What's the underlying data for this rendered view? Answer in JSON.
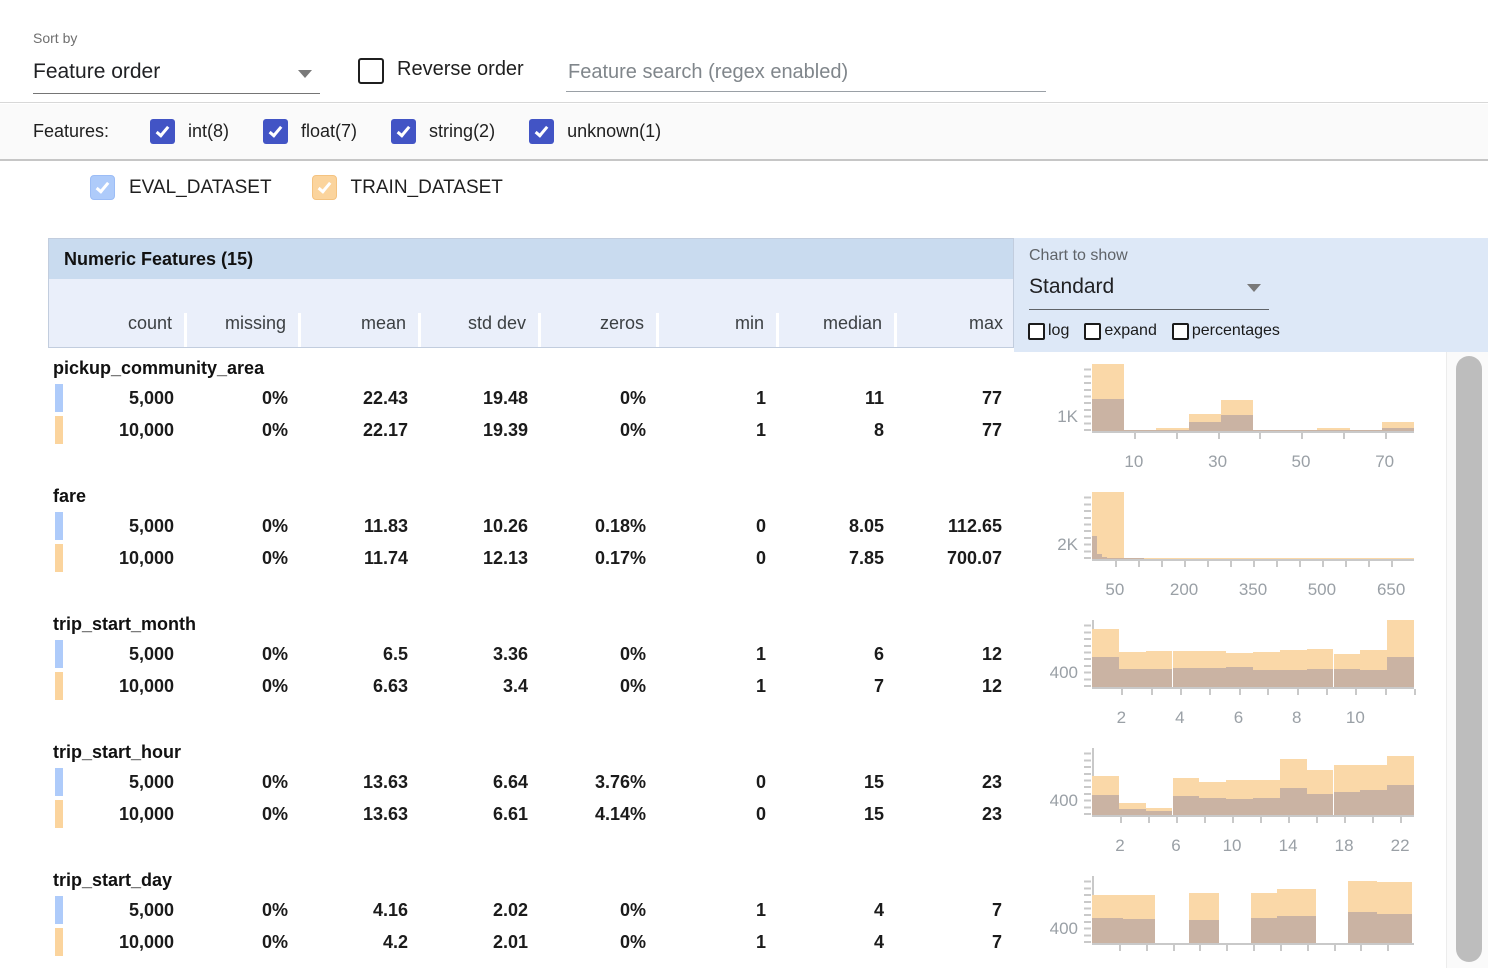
{
  "toolbar": {
    "sort_by_label": "Sort by",
    "sort_value": "Feature order",
    "reverse_label": "Reverse order",
    "search_placeholder": "Feature search (regex enabled)"
  },
  "features_bar": {
    "label": "Features:",
    "types": [
      {
        "label": "int(8)",
        "checked": true
      },
      {
        "label": "float(7)",
        "checked": true
      },
      {
        "label": "string(2)",
        "checked": true
      },
      {
        "label": "unknown(1)",
        "checked": true
      }
    ]
  },
  "datasets": [
    {
      "name": "EVAL_DATASET",
      "checked": true,
      "color": "#aecbfa"
    },
    {
      "name": "TRAIN_DATASET",
      "checked": true,
      "color": "#fbd49d"
    }
  ],
  "table": {
    "title": "Numeric Features (15)",
    "columns": [
      "count",
      "missing",
      "mean",
      "std dev",
      "zeros",
      "min",
      "median",
      "max"
    ]
  },
  "chart_controls": {
    "label": "Chart to show",
    "value": "Standard",
    "options": [
      {
        "label": "log",
        "checked": false
      },
      {
        "label": "expand",
        "checked": false
      },
      {
        "label": "percentages",
        "checked": false
      }
    ]
  },
  "colors": {
    "accent_indigo": "#4254c5",
    "eval_blue": "#aecbfa",
    "train_orange": "#fbd49d",
    "hist_train": "#fad8a8",
    "hist_overlap": "#cab3a3",
    "banner_blue": "#c9dbef",
    "header_row_blue": "#eaeffa",
    "panel_blue": "#dde8f7"
  },
  "features": [
    {
      "name": "pickup_community_area",
      "rows": [
        {
          "dataset": "EVAL_DATASET",
          "values": [
            "5,000",
            "0%",
            "22.43",
            "19.48",
            "0%",
            "1",
            "11",
            "77"
          ]
        },
        {
          "dataset": "TRAIN_DATASET",
          "values": [
            "10,000",
            "0%",
            "22.17",
            "19.39",
            "0%",
            "1",
            "8",
            "77"
          ]
        }
      ],
      "histogram": {
        "type": "bar",
        "y_axis_label": "1K",
        "x_tick_labels": [
          "10",
          "30",
          "50",
          "70"
        ],
        "ticks": [
          {
            "f": 0.13,
            "label": "10"
          },
          {
            "f": 0.26
          },
          {
            "f": 0.39,
            "label": "30"
          },
          {
            "f": 0.519
          },
          {
            "f": 0.649,
            "label": "50"
          },
          {
            "f": 0.779
          },
          {
            "f": 0.909,
            "label": "70"
          }
        ],
        "train_bars": [
          {
            "x0": 0.0,
            "x1": 0.1,
            "h": 1.0
          },
          {
            "x0": 0.1,
            "x1": 0.2,
            "h": 0.02
          },
          {
            "x0": 0.2,
            "x1": 0.3,
            "h": 0.05
          },
          {
            "x0": 0.3,
            "x1": 0.4,
            "h": 0.26
          },
          {
            "x0": 0.4,
            "x1": 0.5,
            "h": 0.47
          },
          {
            "x0": 0.5,
            "x1": 0.6,
            "h": 0.02
          },
          {
            "x0": 0.6,
            "x1": 0.7,
            "h": 0.01
          },
          {
            "x0": 0.7,
            "x1": 0.8,
            "h": 0.04
          },
          {
            "x0": 0.8,
            "x1": 0.9,
            "h": 0.01
          },
          {
            "x0": 0.9,
            "x1": 1.0,
            "h": 0.13
          }
        ],
        "eval_bars": [
          {
            "x0": 0.0,
            "x1": 0.1,
            "h": 0.48
          },
          {
            "x0": 0.1,
            "x1": 0.2,
            "h": 0.01
          },
          {
            "x0": 0.2,
            "x1": 0.3,
            "h": 0.02
          },
          {
            "x0": 0.3,
            "x1": 0.4,
            "h": 0.13
          },
          {
            "x0": 0.4,
            "x1": 0.5,
            "h": 0.24
          },
          {
            "x0": 0.5,
            "x1": 0.6,
            "h": 0.01
          },
          {
            "x0": 0.6,
            "x1": 0.7,
            "h": 0.01
          },
          {
            "x0": 0.7,
            "x1": 0.8,
            "h": 0.02
          },
          {
            "x0": 0.8,
            "x1": 0.9,
            "h": 0.005
          },
          {
            "x0": 0.9,
            "x1": 1.0,
            "h": 0.05
          }
        ]
      }
    },
    {
      "name": "fare",
      "rows": [
        {
          "dataset": "EVAL_DATASET",
          "values": [
            "5,000",
            "0%",
            "11.83",
            "10.26",
            "0.18%",
            "0",
            "8.05",
            "112.65"
          ]
        },
        {
          "dataset": "TRAIN_DATASET",
          "values": [
            "10,000",
            "0%",
            "11.74",
            "12.13",
            "0.17%",
            "0",
            "7.85",
            "700.07"
          ]
        }
      ],
      "histogram": {
        "type": "bar",
        "y_axis_label": "2K",
        "x_tick_labels": [
          "50",
          "200",
          "350",
          "500",
          "650"
        ],
        "ticks": [
          {
            "f": 0.071,
            "label": "50"
          },
          {
            "f": 0.143
          },
          {
            "f": 0.214
          },
          {
            "f": 0.286,
            "label": "200"
          },
          {
            "f": 0.357
          },
          {
            "f": 0.429
          },
          {
            "f": 0.5,
            "label": "350"
          },
          {
            "f": 0.571
          },
          {
            "f": 0.643
          },
          {
            "f": 0.714,
            "label": "500"
          },
          {
            "f": 0.786
          },
          {
            "f": 0.857
          },
          {
            "f": 0.929,
            "label": "650"
          }
        ],
        "train_bars": [
          {
            "x0": 0.0,
            "x1": 0.1,
            "h": 1.0
          },
          {
            "x0": 0.1,
            "x1": 0.2,
            "h": 0.012
          },
          {
            "x0": 0.2,
            "x1": 0.3,
            "h": 0.006
          },
          {
            "x0": 0.3,
            "x1": 0.4,
            "h": 0.004
          },
          {
            "x0": 0.4,
            "x1": 0.5,
            "h": 0.003
          },
          {
            "x0": 0.5,
            "x1": 0.6,
            "h": 0.002
          },
          {
            "x0": 0.6,
            "x1": 0.7,
            "h": 0.002
          },
          {
            "x0": 0.7,
            "x1": 0.8,
            "h": 0.001
          },
          {
            "x0": 0.8,
            "x1": 0.9,
            "h": 0.001
          },
          {
            "x0": 0.9,
            "x1": 1.0,
            "h": 0.001
          }
        ],
        "eval_bars": [
          {
            "x0": 0.0,
            "x1": 0.016,
            "h": 0.34
          },
          {
            "x0": 0.016,
            "x1": 0.032,
            "h": 0.08
          },
          {
            "x0": 0.032,
            "x1": 0.048,
            "h": 0.035
          },
          {
            "x0": 0.048,
            "x1": 0.064,
            "h": 0.02
          },
          {
            "x0": 0.064,
            "x1": 0.081,
            "h": 0.012
          },
          {
            "x0": 0.081,
            "x1": 0.097,
            "h": 0.008
          },
          {
            "x0": 0.097,
            "x1": 0.113,
            "h": 0.005
          },
          {
            "x0": 0.113,
            "x1": 0.129,
            "h": 0.004
          },
          {
            "x0": 0.129,
            "x1": 0.145,
            "h": 0.003
          },
          {
            "x0": 0.145,
            "x1": 0.161,
            "h": 0.002
          }
        ]
      }
    },
    {
      "name": "trip_start_month",
      "rows": [
        {
          "dataset": "EVAL_DATASET",
          "values": [
            "5,000",
            "0%",
            "6.5",
            "3.36",
            "0%",
            "1",
            "6",
            "12"
          ]
        },
        {
          "dataset": "TRAIN_DATASET",
          "values": [
            "10,000",
            "0%",
            "6.63",
            "3.4",
            "0%",
            "1",
            "7",
            "12"
          ]
        }
      ],
      "histogram": {
        "type": "bar",
        "y_axis_label": "400",
        "x_tick_labels": [
          "2",
          "4",
          "6",
          "8",
          "10"
        ],
        "ticks": [
          {
            "f": 0.091,
            "label": "2"
          },
          {
            "f": 0.182
          },
          {
            "f": 0.273,
            "label": "4"
          },
          {
            "f": 0.364
          },
          {
            "f": 0.455,
            "label": "6"
          },
          {
            "f": 0.545
          },
          {
            "f": 0.636,
            "label": "8"
          },
          {
            "f": 0.727
          },
          {
            "f": 0.818,
            "label": "10"
          },
          {
            "f": 0.909
          },
          {
            "f": 1.0
          }
        ],
        "train_bars": [
          {
            "x0": 0.0,
            "x1": 0.083,
            "h": 0.86
          },
          {
            "x0": 0.083,
            "x1": 0.167,
            "h": 0.52
          },
          {
            "x0": 0.167,
            "x1": 0.25,
            "h": 0.54
          },
          {
            "x0": 0.25,
            "x1": 0.333,
            "h": 0.54
          },
          {
            "x0": 0.333,
            "x1": 0.417,
            "h": 0.54
          },
          {
            "x0": 0.417,
            "x1": 0.5,
            "h": 0.51
          },
          {
            "x0": 0.5,
            "x1": 0.583,
            "h": 0.52
          },
          {
            "x0": 0.583,
            "x1": 0.667,
            "h": 0.55
          },
          {
            "x0": 0.667,
            "x1": 0.75,
            "h": 0.56
          },
          {
            "x0": 0.75,
            "x1": 0.833,
            "h": 0.5
          },
          {
            "x0": 0.833,
            "x1": 0.917,
            "h": 0.55
          },
          {
            "x0": 0.917,
            "x1": 1.0,
            "h": 1.0
          }
        ],
        "eval_bars": [
          {
            "x0": 0.0,
            "x1": 0.083,
            "h": 0.45
          },
          {
            "x0": 0.083,
            "x1": 0.167,
            "h": 0.27
          },
          {
            "x0": 0.167,
            "x1": 0.25,
            "h": 0.27
          },
          {
            "x0": 0.25,
            "x1": 0.333,
            "h": 0.29
          },
          {
            "x0": 0.333,
            "x1": 0.417,
            "h": 0.28
          },
          {
            "x0": 0.417,
            "x1": 0.5,
            "h": 0.3
          },
          {
            "x0": 0.5,
            "x1": 0.583,
            "h": 0.26
          },
          {
            "x0": 0.583,
            "x1": 0.667,
            "h": 0.26
          },
          {
            "x0": 0.667,
            "x1": 0.75,
            "h": 0.27
          },
          {
            "x0": 0.75,
            "x1": 0.833,
            "h": 0.27
          },
          {
            "x0": 0.833,
            "x1": 0.917,
            "h": 0.26
          },
          {
            "x0": 0.917,
            "x1": 1.0,
            "h": 0.45
          }
        ]
      }
    },
    {
      "name": "trip_start_hour",
      "rows": [
        {
          "dataset": "EVAL_DATASET",
          "values": [
            "5,000",
            "0%",
            "13.63",
            "6.64",
            "3.76%",
            "0",
            "15",
            "23"
          ]
        },
        {
          "dataset": "TRAIN_DATASET",
          "values": [
            "10,000",
            "0%",
            "13.63",
            "6.61",
            "4.14%",
            "0",
            "15",
            "23"
          ]
        }
      ],
      "histogram": {
        "type": "bar",
        "y_axis_label": "400",
        "x_tick_labels": [
          "2",
          "6",
          "10",
          "14",
          "18",
          "22"
        ],
        "ticks": [
          {
            "f": 0.087,
            "label": "2"
          },
          {
            "f": 0.174
          },
          {
            "f": 0.261,
            "label": "6"
          },
          {
            "f": 0.348
          },
          {
            "f": 0.435,
            "label": "10"
          },
          {
            "f": 0.522
          },
          {
            "f": 0.609,
            "label": "14"
          },
          {
            "f": 0.696
          },
          {
            "f": 0.783,
            "label": "18"
          },
          {
            "f": 0.87
          },
          {
            "f": 0.957,
            "label": "22"
          }
        ],
        "train_bars": [
          {
            "x0": 0.0,
            "x1": 0.083,
            "h": 0.58
          },
          {
            "x0": 0.083,
            "x1": 0.167,
            "h": 0.18
          },
          {
            "x0": 0.167,
            "x1": 0.25,
            "h": 0.11
          },
          {
            "x0": 0.25,
            "x1": 0.333,
            "h": 0.55
          },
          {
            "x0": 0.333,
            "x1": 0.417,
            "h": 0.49
          },
          {
            "x0": 0.417,
            "x1": 0.5,
            "h": 0.52
          },
          {
            "x0": 0.5,
            "x1": 0.583,
            "h": 0.52
          },
          {
            "x0": 0.583,
            "x1": 0.667,
            "h": 0.84
          },
          {
            "x0": 0.667,
            "x1": 0.75,
            "h": 0.67
          },
          {
            "x0": 0.75,
            "x1": 0.833,
            "h": 0.74
          },
          {
            "x0": 0.833,
            "x1": 0.917,
            "h": 0.74
          },
          {
            "x0": 0.917,
            "x1": 1.0,
            "h": 0.88
          }
        ],
        "eval_bars": [
          {
            "x0": 0.0,
            "x1": 0.083,
            "h": 0.3
          },
          {
            "x0": 0.083,
            "x1": 0.167,
            "h": 0.09
          },
          {
            "x0": 0.167,
            "x1": 0.25,
            "h": 0.06
          },
          {
            "x0": 0.25,
            "x1": 0.333,
            "h": 0.29
          },
          {
            "x0": 0.333,
            "x1": 0.417,
            "h": 0.25
          },
          {
            "x0": 0.417,
            "x1": 0.5,
            "h": 0.24
          },
          {
            "x0": 0.5,
            "x1": 0.583,
            "h": 0.26
          },
          {
            "x0": 0.583,
            "x1": 0.667,
            "h": 0.4
          },
          {
            "x0": 0.667,
            "x1": 0.75,
            "h": 0.31
          },
          {
            "x0": 0.75,
            "x1": 0.833,
            "h": 0.35
          },
          {
            "x0": 0.833,
            "x1": 0.917,
            "h": 0.37
          },
          {
            "x0": 0.917,
            "x1": 1.0,
            "h": 0.45
          }
        ]
      }
    },
    {
      "name": "trip_start_day",
      "rows": [
        {
          "dataset": "EVAL_DATASET",
          "values": [
            "5,000",
            "0%",
            "4.16",
            "2.02",
            "0%",
            "1",
            "4",
            "7"
          ]
        },
        {
          "dataset": "TRAIN_DATASET",
          "values": [
            "10,000",
            "0%",
            "4.2",
            "2.01",
            "0%",
            "1",
            "4",
            "7"
          ]
        }
      ],
      "histogram": {
        "type": "bar",
        "y_axis_label": "400",
        "x_tick_labels": [],
        "ticks": [
          {
            "f": 0.083
          },
          {
            "f": 0.167
          },
          {
            "f": 0.25
          },
          {
            "f": 0.333
          },
          {
            "f": 0.417
          },
          {
            "f": 0.5
          },
          {
            "f": 0.583
          },
          {
            "f": 0.667
          },
          {
            "f": 0.75
          },
          {
            "f": 0.833
          },
          {
            "f": 0.917
          }
        ],
        "train_bars": [
          {
            "x0": 0.0,
            "x1": 0.095,
            "h": 0.71
          },
          {
            "x0": 0.095,
            "x1": 0.195,
            "h": 0.71
          },
          {
            "x0": 0.3,
            "x1": 0.395,
            "h": 0.74
          },
          {
            "x0": 0.495,
            "x1": 0.575,
            "h": 0.75
          },
          {
            "x0": 0.575,
            "x1": 0.695,
            "h": 0.8
          },
          {
            "x0": 0.795,
            "x1": 0.885,
            "h": 0.92
          },
          {
            "x0": 0.885,
            "x1": 0.995,
            "h": 0.91
          }
        ],
        "eval_bars": [
          {
            "x0": 0.0,
            "x1": 0.095,
            "h": 0.37
          },
          {
            "x0": 0.095,
            "x1": 0.195,
            "h": 0.36
          },
          {
            "x0": 0.3,
            "x1": 0.395,
            "h": 0.34
          },
          {
            "x0": 0.495,
            "x1": 0.575,
            "h": 0.37
          },
          {
            "x0": 0.575,
            "x1": 0.695,
            "h": 0.41
          },
          {
            "x0": 0.795,
            "x1": 0.885,
            "h": 0.46
          },
          {
            "x0": 0.885,
            "x1": 0.995,
            "h": 0.44
          }
        ]
      }
    }
  ]
}
